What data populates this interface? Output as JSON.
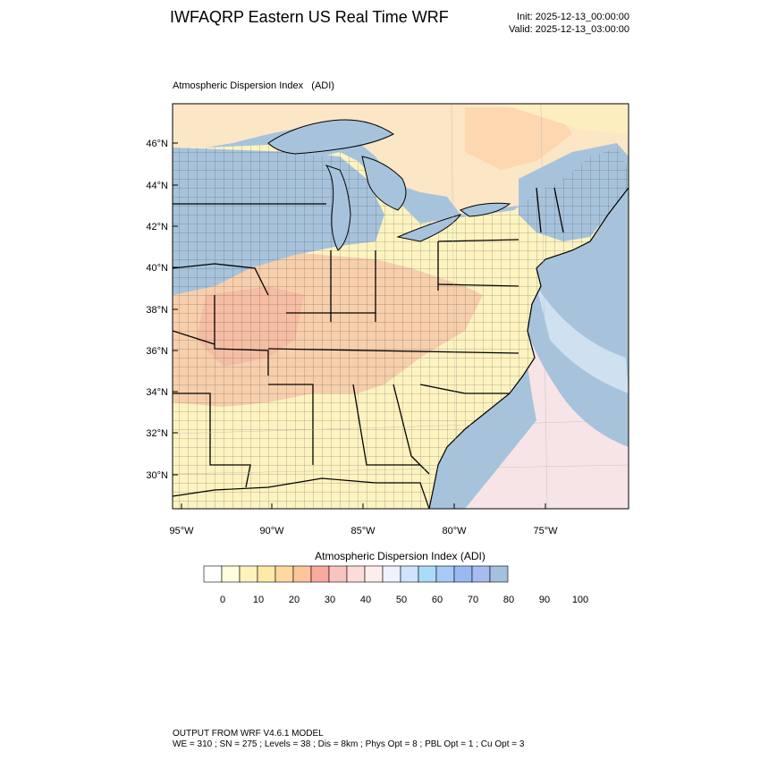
{
  "header": {
    "title": "IWFAQRP Eastern US Real Time WRF",
    "init": "Init: 2025-12-13_00:00:00",
    "valid": "Valid: 2025-12-13_03:00:00"
  },
  "map": {
    "title": "Atmospheric Dispersion Index   (ADI)",
    "lat_labels": [
      "46°N",
      "44°N",
      "42°N",
      "40°N",
      "38°N",
      "36°N",
      "34°N",
      "32°N",
      "30°N"
    ],
    "lon_labels": [
      "95°W",
      "90°W",
      "85°W",
      "80°W",
      "75°W"
    ],
    "colors": {
      "land_low": "#fdf3c0",
      "land_mid": "#f6c8a8",
      "lake": "#a7c3dc",
      "ocean": "#a7c3dc",
      "border": "#000000"
    }
  },
  "colorbar": {
    "title": "Atmospheric Dispersion Index  (ADI)",
    "tick_labels": [
      "0",
      "10",
      "20",
      "30",
      "40",
      "50",
      "60",
      "70",
      "80",
      "90",
      "100"
    ],
    "colors": [
      "#ffffff",
      "#fffbdd",
      "#fff2bd",
      "#fee9a8",
      "#fdd9a0",
      "#fcc59c",
      "#f8a9a0",
      "#f9c3c0",
      "#fcdcd8",
      "#fdeeed",
      "#eef2fd",
      "#cfe3fa",
      "#a9dcf7",
      "#a7cbf6",
      "#9ab9f0",
      "#a5bcf0",
      "#a5c0dc"
    ]
  },
  "footer": {
    "line1": "OUTPUT FROM WRF V4.6.1 MODEL",
    "line2": "WE = 310 ; SN = 275 ; Levels = 38 ; Dis = 8km ; Phys Opt = 8 ; PBL Opt = 1 ; Cu Opt = 3"
  }
}
